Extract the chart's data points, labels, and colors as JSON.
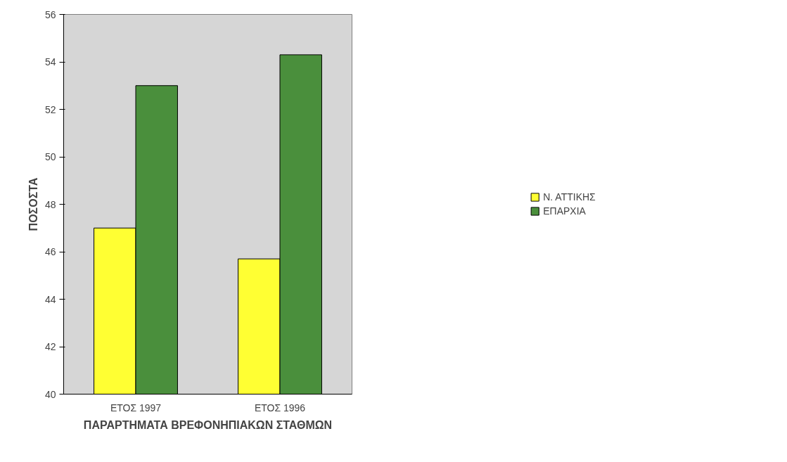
{
  "chart_data": {
    "type": "bar",
    "xlabel": "ΠΑΡΑΡΤΗΜΑΤΑ ΒΡΕΦΟΝΗΠΙΑΚΩΝ ΣΤΑΘΜΩΝ",
    "ylabel": "ΠΟΣΟΣΤΑ",
    "categories": [
      "ΕΤΟΣ 1997",
      "ΕΤΟΣ 1996"
    ],
    "series": [
      {
        "name": "Ν. ΑΤΤΙΚΗΣ",
        "color": "#ffff33",
        "values": [
          47.0,
          45.7
        ]
      },
      {
        "name": "ΕΠΑΡΧΙΑ",
        "color": "#4a8f3c",
        "values": [
          53.0,
          54.3
        ]
      }
    ],
    "ylim": [
      40,
      56
    ],
    "yticks": [
      40,
      42,
      44,
      46,
      48,
      50,
      52,
      54,
      56
    ],
    "grid": false,
    "legend": "right"
  }
}
